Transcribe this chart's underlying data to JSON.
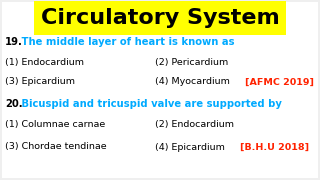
{
  "title": "Circulatory System",
  "title_color": "#000000",
  "title_bg": "#FFFF00",
  "bg_color": "#EFEFEF",
  "content_bg": "#FFFFFF",
  "q19_num": "19.",
  "q19_text": " The middle layer of heart is known as",
  "q19_opts": [
    [
      "(1) Endocardium",
      "(2) Pericardium"
    ],
    [
      "(3) Epicardium",
      "(4) Myocardium"
    ]
  ],
  "q19_tag": "[AFMC 2019]",
  "q20_num": "20.",
  "q20_text": " Bicuspid and tricuspid valve are supported by",
  "q20_opts": [
    [
      "(1) Columnae carnae",
      "(2) Endocardium"
    ],
    [
      "(3) Chordae tendinae",
      "(4) Epicardium"
    ]
  ],
  "q20_tag": "[B.H.U 2018]",
  "cyan_color": "#00AAFF",
  "red_color": "#FF2200",
  "black_color": "#000000",
  "title_fontsize": 16,
  "q_num_fontsize": 7.2,
  "q_text_fontsize": 7.2,
  "opt_fontsize": 6.8,
  "tag_fontsize": 6.8
}
